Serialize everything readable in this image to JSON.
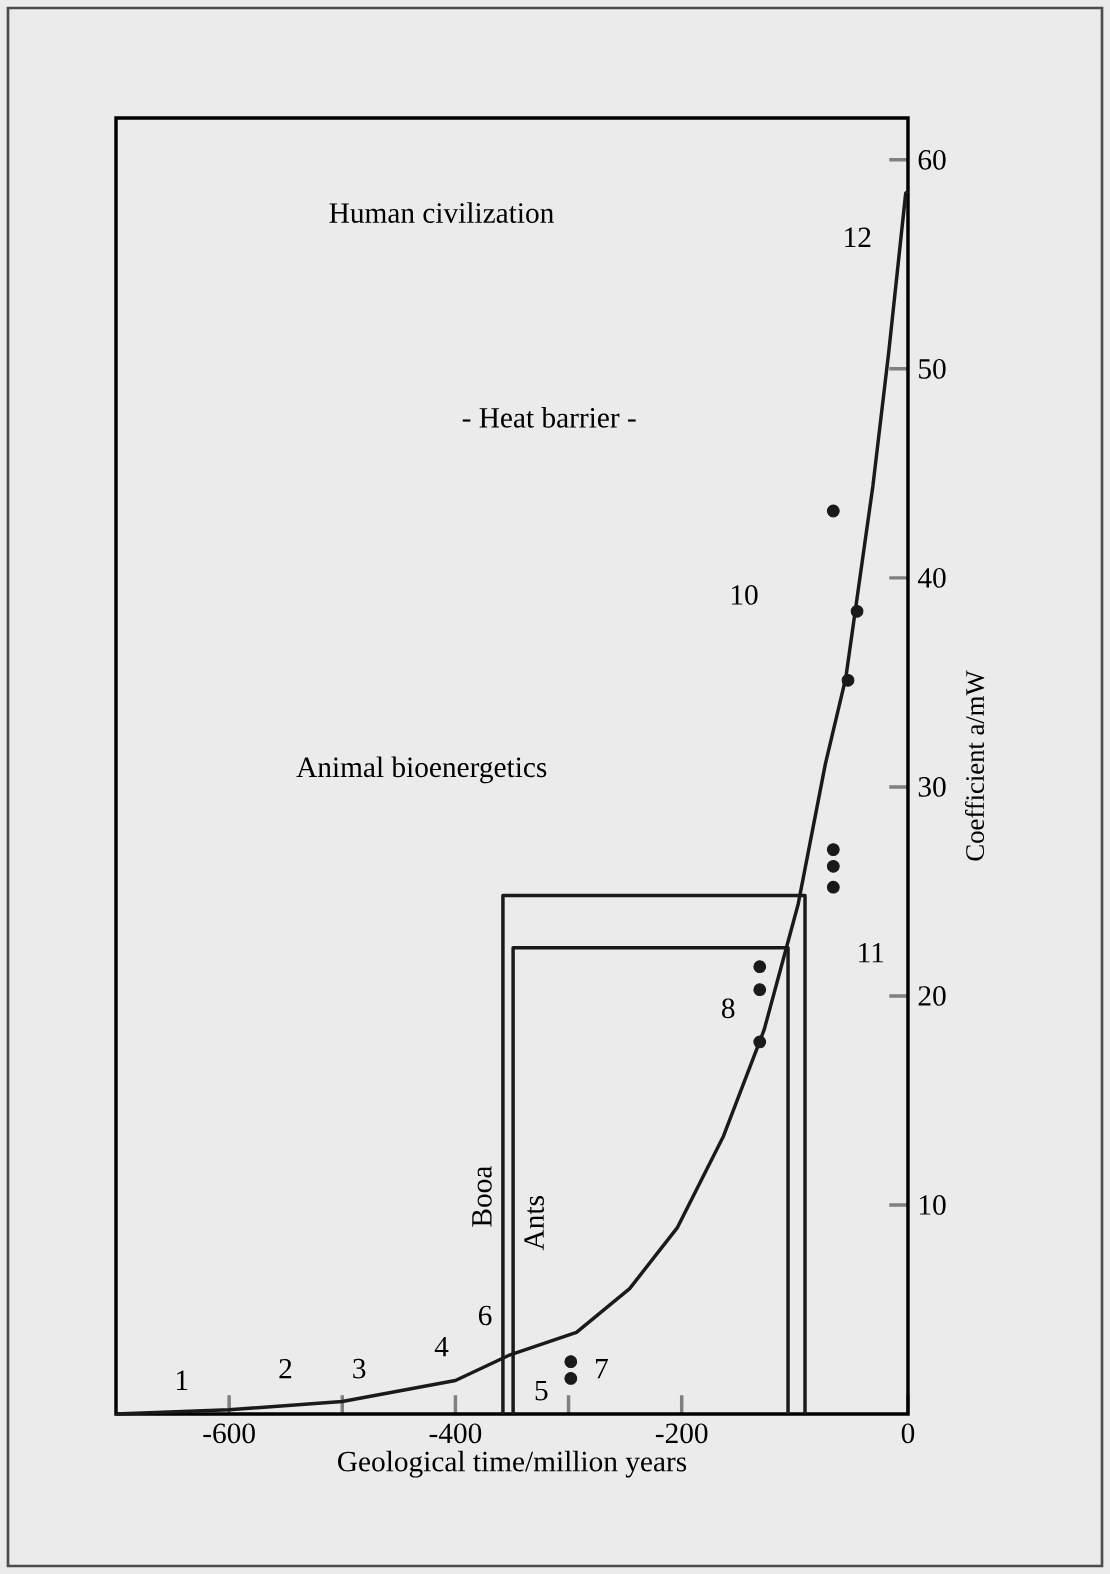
{
  "chart_data": {
    "type": "line",
    "xlabel": "Geological time/million years",
    "ylabel": "Coefficient a/mW",
    "xlim": [
      -700,
      0
    ],
    "ylim": [
      0,
      62
    ],
    "xticks": [
      -600,
      {
        "value": -500,
        "label": null
      },
      -400,
      {
        "value": -300,
        "label": null
      },
      -200,
      0
    ],
    "yticks": [
      10,
      20,
      30,
      40,
      50,
      60
    ],
    "series": [
      {
        "color": "#1a1a1a",
        "x": [
          -700,
          -600,
          -500,
          -400,
          -353,
          -293,
          -246,
          -204,
          -163,
          -127,
          -97,
          -73,
          -55,
          -31,
          -17,
          -2,
          0
        ],
        "values": [
          0,
          0.2,
          0.6,
          1.6,
          2.8,
          3.9,
          6.0,
          8.9,
          13.3,
          18.4,
          24.4,
          31.1,
          35.2,
          44.4,
          50.8,
          58.4,
          58.5
        ]
      },
      {
        "type": "scatter",
        "color": "#1a1a1a",
        "x": [
          -298,
          -298,
          -131,
          -131,
          -131,
          -66,
          -66,
          -66,
          -66,
          -45,
          -53
        ],
        "values": [
          2.5,
          1.7,
          21.4,
          20.3,
          17.8,
          27.0,
          26.2,
          25.2,
          43.2,
          38.4,
          35.1
        ]
      },
      {
        "name": "Booa",
        "color": "#1a1a1a",
        "x": [
          -358,
          -358,
          -91,
          -91
        ],
        "values": [
          0,
          24.8,
          24.8,
          0
        ]
      },
      {
        "name": "Ants",
        "color": "#1a1a1a",
        "x": [
          -349,
          -349,
          -106,
          -106
        ],
        "values": [
          0,
          22.3,
          22.3,
          0
        ]
      }
    ],
    "annotations": [
      "1",
      "2",
      "3",
      "4",
      "5",
      "6",
      "7",
      "8",
      "10",
      "11",
      "12",
      "Human civilization",
      "- Heat barrier -",
      "Animal bioenergetics"
    ]
  }
}
